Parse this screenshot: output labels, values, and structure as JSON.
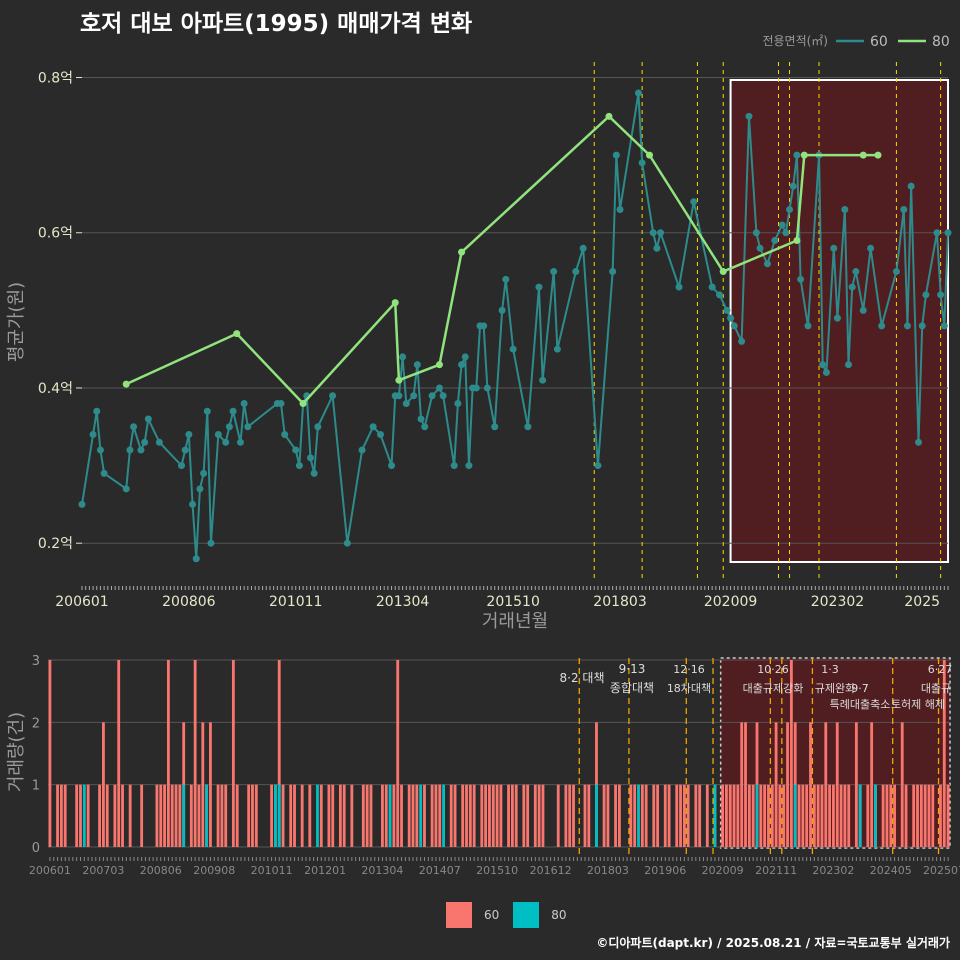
{
  "title": "호저 대보 아파트(1995) 매매가격 변화",
  "credit": "©디아파트(dapt.kr) / 2025.08.21 / 자료=국토교통부 실거래가",
  "colors": {
    "background": "#2a2a2b",
    "series_60_line": "#2e8b8b",
    "series_80_line": "#90e37d",
    "bar_60": "#f8766d",
    "bar_80": "#00bfc4",
    "highlight_fill": "#5a1a1e",
    "policy_line": "#ffd700",
    "axis_text": "#e6e6c8"
  },
  "chart_data": [
    {
      "type": "line",
      "xlabel": "거래년월",
      "ylabel": "평균가(원)",
      "ylim": [
        0.15,
        0.82
      ],
      "xlim": [
        "2006-01",
        "2025-08"
      ],
      "y_ticks": [
        0.2,
        0.4,
        0.6,
        0.8
      ],
      "y_tick_labels": [
        "0.2억",
        "0.4억",
        "0.6억",
        "0.8억"
      ],
      "x_tick_labels": [
        "200601",
        "200806",
        "201011",
        "201304",
        "201510",
        "201803",
        "202009",
        "202302",
        "2025"
      ],
      "legend": {
        "title": "전용면적(㎡)",
        "position": "top-right",
        "entries": [
          "60",
          "80"
        ]
      },
      "grid": true,
      "policy_dates": [
        "2017-08",
        "2018-09",
        "2019-12",
        "2020-07",
        "2021-10",
        "2022-01",
        "2022-09",
        "2024-06",
        "2025-06"
      ],
      "highlight_range": [
        "2020-09",
        "2025-08"
      ],
      "series": [
        {
          "name": "60",
          "x": [
            "2006-01",
            "2006-04",
            "2006-05",
            "2006-06",
            "2006-07",
            "2007-01",
            "2007-02",
            "2007-03",
            "2007-05",
            "2007-06",
            "2007-07",
            "2007-10",
            "2008-04",
            "2008-05",
            "2008-06",
            "2008-07",
            "2008-08",
            "2008-09",
            "2008-10",
            "2008-11",
            "2008-12",
            "2009-02",
            "2009-04",
            "2009-05",
            "2009-06",
            "2009-08",
            "2009-09",
            "2009-10",
            "2010-06",
            "2010-07",
            "2010-08",
            "2010-11",
            "2010-12",
            "2011-01",
            "2011-02",
            "2011-03",
            "2011-04",
            "2011-05",
            "2011-09",
            "2012-01",
            "2012-05",
            "2012-08",
            "2012-10",
            "2013-01",
            "2013-02",
            "2013-03",
            "2013-04",
            "2013-05",
            "2013-07",
            "2013-08",
            "2013-09",
            "2013-10",
            "2013-12",
            "2014-02",
            "2014-03",
            "2014-06",
            "2014-07",
            "2014-08",
            "2014-09",
            "2014-10",
            "2014-11",
            "2014-12",
            "2015-01",
            "2015-02",
            "2015-03",
            "2015-05",
            "2015-07",
            "2015-08",
            "2015-10",
            "2016-02",
            "2016-05",
            "2016-06",
            "2016-09",
            "2016-10",
            "2017-03",
            "2017-05",
            "2017-09",
            "2018-01",
            "2018-02",
            "2018-03",
            "2018-08",
            "2018-09",
            "2018-12",
            "2019-01",
            "2019-02",
            "2019-07",
            "2019-11",
            "2020-04",
            "2020-06",
            "2020-08",
            "2020-09",
            "2020-10",
            "2020-12",
            "2021-02",
            "2021-04",
            "2021-05",
            "2021-07",
            "2021-09",
            "2021-11",
            "2021-12",
            "2022-01",
            "2022-02",
            "2022-03",
            "2022-04",
            "2022-06",
            "2022-09",
            "2022-10",
            "2022-11",
            "2023-01",
            "2023-02",
            "2023-04",
            "2023-05",
            "2023-06",
            "2023-07",
            "2023-09",
            "2023-11",
            "2024-02",
            "2024-06",
            "2024-08",
            "2024-09",
            "2024-10",
            "2024-12",
            "2025-01",
            "2025-02",
            "2025-05",
            "2025-06",
            "2025-07",
            "2025-08"
          ],
          "y": [
            0.25,
            0.34,
            0.37,
            0.32,
            0.29,
            0.27,
            0.32,
            0.35,
            0.32,
            0.33,
            0.36,
            0.33,
            0.3,
            0.32,
            0.34,
            0.25,
            0.18,
            0.27,
            0.29,
            0.37,
            0.2,
            0.34,
            0.33,
            0.35,
            0.37,
            0.33,
            0.38,
            0.35,
            0.38,
            0.38,
            0.34,
            0.32,
            0.3,
            0.38,
            0.39,
            0.31,
            0.29,
            0.35,
            0.39,
            0.2,
            0.32,
            0.35,
            0.34,
            0.3,
            0.39,
            0.39,
            0.44,
            0.38,
            0.39,
            0.43,
            0.36,
            0.35,
            0.39,
            0.4,
            0.39,
            0.3,
            0.38,
            0.43,
            0.44,
            0.3,
            0.4,
            0.4,
            0.48,
            0.48,
            0.4,
            0.35,
            0.5,
            0.54,
            0.45,
            0.35,
            0.53,
            0.41,
            0.55,
            0.45,
            0.55,
            0.58,
            0.3,
            0.55,
            0.7,
            0.63,
            0.78,
            0.69,
            0.6,
            0.58,
            0.6,
            0.53,
            0.64,
            0.53,
            0.52,
            0.5,
            0.49,
            0.48,
            0.46,
            0.75,
            0.6,
            0.58,
            0.56,
            0.59,
            0.61,
            0.6,
            0.63,
            0.66,
            0.7,
            0.54,
            0.48,
            0.7,
            0.43,
            0.42,
            0.58,
            0.49,
            0.63,
            0.43,
            0.53,
            0.55,
            0.5,
            0.58,
            0.48,
            0.55,
            0.63,
            0.48,
            0.66,
            0.33,
            0.48,
            0.52,
            0.6,
            0.52,
            0.48,
            0.6
          ]
        },
        {
          "name": "80",
          "x": [
            "2007-01",
            "2009-07",
            "2011-01",
            "2013-02",
            "2013-03",
            "2014-02",
            "2014-08",
            "2017-12",
            "2018-11",
            "2020-07",
            "2022-03",
            "2022-05",
            "2023-09",
            "2024-01"
          ],
          "y": [
            0.405,
            0.47,
            0.38,
            0.51,
            0.41,
            0.43,
            0.575,
            0.75,
            0.7,
            0.55,
            0.59,
            0.7,
            0.7,
            0.7
          ]
        }
      ]
    },
    {
      "type": "bar",
      "ylabel": "거래량(건)",
      "ylim": [
        0,
        3
      ],
      "y_ticks": [
        0,
        1,
        2,
        3
      ],
      "x_tick_labels": [
        "200601",
        "200703",
        "200806",
        "200908",
        "201011",
        "201201",
        "201304",
        "201407",
        "201510",
        "201612",
        "201803",
        "201906",
        "202009",
        "202111",
        "202302",
        "202405",
        "202507"
      ],
      "legend": {
        "position": "bottom",
        "entries": [
          "60",
          "80"
        ]
      },
      "policies": [
        {
          "date": "2017-08",
          "label": "8·2 대책"
        },
        {
          "date": "2018-09",
          "label": "9·13",
          "label2": "종합대책"
        },
        {
          "date": "2019-12",
          "label": "12·16",
          "label2": "18차대책"
        },
        {
          "date": "2020-07",
          "label": ""
        },
        {
          "date": "2021-10",
          "label": "10·26",
          "label2": "대출규제강화"
        },
        {
          "date": "2022-01",
          "label": "1·3",
          "label2": "규제완화"
        },
        {
          "date": "2022-09",
          "label": "9·7",
          "label2": "특례대출축소"
        },
        {
          "date": "2024-06",
          "label": "",
          "label2": "토허제 해제"
        },
        {
          "date": "2025-06",
          "label": "6·27",
          "label2": "대출규"
        }
      ],
      "series": [
        {
          "name": "60",
          "values_by_month": "see counts"
        },
        {
          "name": "80",
          "values_by_month": "see counts"
        }
      ],
      "counts_60": {
        "2006-01": 3,
        "2006-03": 1,
        "2006-04": 1,
        "2006-05": 1,
        "2006-08": 1,
        "2006-09": 1,
        "2006-11": 1,
        "2007-02": 1,
        "2007-03": 2,
        "2007-04": 1,
        "2007-06": 1,
        "2007-07": 3,
        "2007-08": 1,
        "2007-10": 1,
        "2008-01": 1,
        "2008-05": 1,
        "2008-06": 1,
        "2008-07": 1,
        "2008-08": 3,
        "2008-09": 1,
        "2008-10": 1,
        "2008-11": 1,
        "2008-12": 2,
        "2009-02": 1,
        "2009-03": 3,
        "2009-04": 1,
        "2009-05": 2,
        "2009-06": 1,
        "2009-07": 2,
        "2009-09": 1,
        "2009-10": 1,
        "2009-11": 1,
        "2010-01": 3,
        "2010-02": 1,
        "2010-05": 1,
        "2010-06": 1,
        "2010-07": 1,
        "2010-11": 1,
        "2010-12": 1,
        "2011-01": 3,
        "2011-02": 1,
        "2011-04": 1,
        "2011-05": 1,
        "2011-07": 1,
        "2011-09": 1,
        "2011-12": 1,
        "2012-02": 1,
        "2012-03": 1,
        "2012-05": 1,
        "2012-06": 1,
        "2012-08": 1,
        "2012-11": 1,
        "2012-12": 1,
        "2013-01": 1,
        "2013-04": 1,
        "2013-05": 1,
        "2013-07": 1,
        "2013-08": 3,
        "2013-09": 1,
        "2013-11": 1,
        "2013-12": 1,
        "2014-01": 1,
        "2014-03": 1,
        "2014-05": 1,
        "2014-06": 1,
        "2014-07": 1,
        "2014-10": 1,
        "2014-11": 1,
        "2015-01": 1,
        "2015-02": 1,
        "2015-03": 1,
        "2015-04": 1,
        "2015-06": 1,
        "2015-07": 1,
        "2015-08": 1,
        "2015-09": 1,
        "2015-10": 1,
        "2015-11": 1,
        "2016-01": 1,
        "2016-02": 1,
        "2016-03": 1,
        "2016-05": 1,
        "2016-06": 1,
        "2016-08": 1,
        "2016-09": 1,
        "2016-10": 1,
        "2017-02": 1,
        "2017-04": 1,
        "2017-05": 1,
        "2017-06": 1,
        "2017-09": 1,
        "2017-10": 1,
        "2017-12": 2,
        "2018-02": 1,
        "2018-03": 1,
        "2018-05": 1,
        "2018-06": 1,
        "2018-09": 1,
        "2018-10": 1,
        "2018-12": 1,
        "2019-01": 1,
        "2019-03": 1,
        "2019-04": 1,
        "2019-06": 1,
        "2019-07": 1,
        "2019-09": 1,
        "2019-10": 1,
        "2019-11": 1,
        "2019-12": 1,
        "2020-02": 1,
        "2020-03": 1,
        "2020-05": 1,
        "2020-07": 1,
        "2020-09": 1,
        "2020-10": 1,
        "2020-11": 1,
        "2020-12": 1,
        "2021-01": 1,
        "2021-02": 2,
        "2021-03": 2,
        "2021-04": 1,
        "2021-05": 1,
        "2021-06": 2,
        "2021-07": 1,
        "2021-08": 1,
        "2021-09": 1,
        "2021-10": 1,
        "2021-11": 2,
        "2021-12": 1,
        "2022-01": 1,
        "2022-02": 2,
        "2022-03": 3,
        "2022-04": 2,
        "2022-05": 1,
        "2022-06": 1,
        "2022-07": 1,
        "2022-08": 2,
        "2022-09": 1,
        "2022-10": 1,
        "2022-11": 1,
        "2022-12": 2,
        "2023-01": 1,
        "2023-02": 1,
        "2023-03": 2,
        "2023-04": 1,
        "2023-05": 1,
        "2023-06": 1,
        "2023-08": 2,
        "2023-09": 1,
        "2023-11": 1,
        "2023-12": 2,
        "2024-01": 1,
        "2024-03": 1,
        "2024-04": 1,
        "2024-05": 1,
        "2024-06": 1,
        "2024-08": 2,
        "2024-09": 1,
        "2024-11": 1,
        "2024-12": 1,
        "2025-01": 1,
        "2025-02": 1,
        "2025-03": 1,
        "2025-04": 1,
        "2025-06": 1,
        "2025-07": 3,
        "2025-08": 1
      },
      "counts_80": {
        "2006-10": 1,
        "2008-12": 1,
        "2009-06": 1,
        "2010-12": 1,
        "2011-01": 1,
        "2011-11": 1,
        "2013-06": 1,
        "2014-02": 1,
        "2014-08": 1,
        "2017-12": 1,
        "2018-11": 1,
        "2020-07": 1,
        "2021-06": 1,
        "2022-04": 1,
        "2023-09": 1,
        "2024-01": 1
      }
    }
  ]
}
